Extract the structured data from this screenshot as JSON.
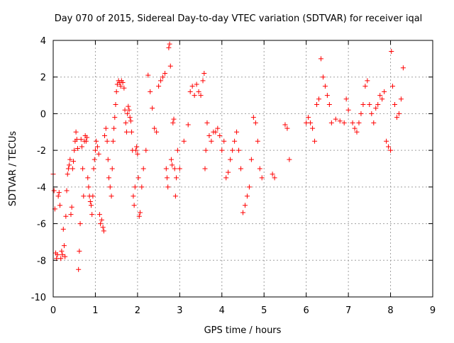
{
  "chart_data": {
    "type": "scatter",
    "title": "Day 070 of 2015, Sidereal Day-to-day VTEC variation (SDTVAR) for receiver iqal",
    "xlabel": "GPS time / hours",
    "ylabel": "SDTVAR / TECUs",
    "xlim": [
      0,
      9
    ],
    "ylim": [
      -10,
      4
    ],
    "xticks": [
      "0",
      "1",
      "2",
      "3",
      "4",
      "5",
      "6",
      "7",
      "8",
      "9"
    ],
    "yticks": [
      "4",
      "2",
      "0",
      "-2",
      "-4",
      "-6",
      "-8",
      "-10"
    ],
    "grid": true,
    "marker": "+",
    "series_color": "#ff0000",
    "series": [
      {
        "name": "SDTVAR",
        "points": [
          [
            0.0,
            -3.3
          ],
          [
            0.02,
            -4.2
          ],
          [
            0.04,
            -5.2
          ],
          [
            0.06,
            -7.6
          ],
          [
            0.08,
            -7.9
          ],
          [
            0.1,
            -7.7
          ],
          [
            0.12,
            -4.5
          ],
          [
            0.14,
            -4.3
          ],
          [
            0.16,
            -5.0
          ],
          [
            0.18,
            -7.9
          ],
          [
            0.2,
            -7.5
          ],
          [
            0.22,
            -7.7
          ],
          [
            0.24,
            -6.3
          ],
          [
            0.26,
            -7.2
          ],
          [
            0.28,
            -7.8
          ],
          [
            0.3,
            -5.6
          ],
          [
            0.32,
            -4.2
          ],
          [
            0.34,
            -3.3
          ],
          [
            0.36,
            -3.0
          ],
          [
            0.38,
            -2.8
          ],
          [
            0.4,
            -2.5
          ],
          [
            0.42,
            -5.5
          ],
          [
            0.44,
            -5.1
          ],
          [
            0.46,
            -3.0
          ],
          [
            0.48,
            -2.6
          ],
          [
            0.5,
            -2.0
          ],
          [
            0.52,
            -1.5
          ],
          [
            0.54,
            -1.0
          ],
          [
            0.56,
            -1.4
          ],
          [
            0.58,
            -1.9
          ],
          [
            0.6,
            -8.5
          ],
          [
            0.62,
            -7.5
          ],
          [
            0.64,
            -6.0
          ],
          [
            0.66,
            -1.4
          ],
          [
            0.68,
            -1.8
          ],
          [
            0.7,
            -3.0
          ],
          [
            0.72,
            -4.5
          ],
          [
            0.74,
            -1.5
          ],
          [
            0.76,
            -1.2
          ],
          [
            0.78,
            -1.5
          ],
          [
            0.8,
            -1.3
          ],
          [
            0.82,
            -3.5
          ],
          [
            0.84,
            -4.0
          ],
          [
            0.86,
            -4.5
          ],
          [
            0.88,
            -4.8
          ],
          [
            0.9,
            -5.0
          ],
          [
            0.92,
            -5.5
          ],
          [
            0.94,
            -4.5
          ],
          [
            0.96,
            -3.0
          ],
          [
            0.98,
            -2.5
          ],
          [
            1.0,
            -2.0
          ],
          [
            1.02,
            -1.5
          ],
          [
            1.05,
            -1.8
          ],
          [
            1.08,
            -2.2
          ],
          [
            1.1,
            -5.5
          ],
          [
            1.12,
            -6.0
          ],
          [
            1.15,
            -5.8
          ],
          [
            1.18,
            -6.2
          ],
          [
            1.2,
            -6.4
          ],
          [
            1.22,
            -1.2
          ],
          [
            1.25,
            -0.8
          ],
          [
            1.28,
            -1.5
          ],
          [
            1.3,
            -2.5
          ],
          [
            1.32,
            -3.5
          ],
          [
            1.35,
            -4.0
          ],
          [
            1.38,
            -4.5
          ],
          [
            1.4,
            -3.0
          ],
          [
            1.42,
            -1.5
          ],
          [
            1.44,
            -0.8
          ],
          [
            1.46,
            -0.2
          ],
          [
            1.48,
            0.5
          ],
          [
            1.5,
            1.2
          ],
          [
            1.52,
            1.6
          ],
          [
            1.55,
            1.8
          ],
          [
            1.58,
            1.7
          ],
          [
            1.6,
            1.5
          ],
          [
            1.62,
            1.8
          ],
          [
            1.65,
            1.7
          ],
          [
            1.68,
            1.4
          ],
          [
            1.7,
            0.2
          ],
          [
            1.72,
            -0.5
          ],
          [
            1.74,
            -1.0
          ],
          [
            1.76,
            0.0
          ],
          [
            1.78,
            0.4
          ],
          [
            1.8,
            0.2
          ],
          [
            1.82,
            -0.2
          ],
          [
            1.84,
            -0.4
          ],
          [
            1.86,
            -1.0
          ],
          [
            1.88,
            -2.0
          ],
          [
            1.9,
            -4.5
          ],
          [
            1.92,
            -5.0
          ],
          [
            1.94,
            -4.0
          ],
          [
            1.96,
            -2.0
          ],
          [
            1.98,
            -1.8
          ],
          [
            2.0,
            -2.2
          ],
          [
            2.02,
            -3.5
          ],
          [
            2.04,
            -5.6
          ],
          [
            2.06,
            -5.4
          ],
          [
            2.1,
            -4.0
          ],
          [
            2.14,
            -3.0
          ],
          [
            2.2,
            -2.0
          ],
          [
            2.25,
            2.1
          ],
          [
            2.3,
            1.2
          ],
          [
            2.35,
            0.3
          ],
          [
            2.4,
            -0.8
          ],
          [
            2.45,
            -1.0
          ],
          [
            2.5,
            1.5
          ],
          [
            2.55,
            1.8
          ],
          [
            2.6,
            2.0
          ],
          [
            2.65,
            2.2
          ],
          [
            2.68,
            -3.0
          ],
          [
            2.7,
            -3.5
          ],
          [
            2.72,
            -4.0
          ],
          [
            2.74,
            3.6
          ],
          [
            2.76,
            3.8
          ],
          [
            2.78,
            2.6
          ],
          [
            2.8,
            -2.5
          ],
          [
            2.82,
            -2.8
          ],
          [
            2.84,
            -0.5
          ],
          [
            2.86,
            -0.3
          ],
          [
            2.88,
            -3.0
          ],
          [
            2.9,
            -4.5
          ],
          [
            2.92,
            -3.5
          ],
          [
            2.95,
            -2.0
          ],
          [
            3.0,
            -3.0
          ],
          [
            3.1,
            -1.5
          ],
          [
            3.2,
            -0.6
          ],
          [
            3.25,
            1.2
          ],
          [
            3.3,
            1.5
          ],
          [
            3.35,
            1.0
          ],
          [
            3.4,
            1.6
          ],
          [
            3.45,
            1.2
          ],
          [
            3.5,
            1.0
          ],
          [
            3.55,
            1.8
          ],
          [
            3.58,
            2.2
          ],
          [
            3.6,
            -3.0
          ],
          [
            3.62,
            -2.0
          ],
          [
            3.65,
            -0.5
          ],
          [
            3.7,
            -1.2
          ],
          [
            3.75,
            -1.5
          ],
          [
            3.8,
            -1.0
          ],
          [
            3.85,
            -1.0
          ],
          [
            3.9,
            -0.8
          ],
          [
            3.95,
            -1.2
          ],
          [
            4.0,
            -2.0
          ],
          [
            4.05,
            -1.5
          ],
          [
            4.1,
            -3.5
          ],
          [
            4.15,
            -3.2
          ],
          [
            4.2,
            -2.5
          ],
          [
            4.25,
            -2.0
          ],
          [
            4.3,
            -1.5
          ],
          [
            4.35,
            -1.0
          ],
          [
            4.4,
            -2.0
          ],
          [
            4.45,
            -3.0
          ],
          [
            4.5,
            -5.4
          ],
          [
            4.55,
            -5.0
          ],
          [
            4.6,
            -4.5
          ],
          [
            4.65,
            -4.0
          ],
          [
            4.7,
            -2.5
          ],
          [
            4.75,
            -0.2
          ],
          [
            4.8,
            -0.5
          ],
          [
            4.85,
            -1.5
          ],
          [
            4.9,
            -3.0
          ],
          [
            4.95,
            -3.5
          ],
          [
            5.2,
            -3.3
          ],
          [
            5.25,
            -3.5
          ],
          [
            5.5,
            -0.6
          ],
          [
            5.55,
            -0.8
          ],
          [
            5.6,
            -2.5
          ],
          [
            6.0,
            -0.5
          ],
          [
            6.05,
            -0.2
          ],
          [
            6.1,
            -0.5
          ],
          [
            6.15,
            -0.8
          ],
          [
            6.2,
            -1.5
          ],
          [
            6.25,
            0.5
          ],
          [
            6.3,
            0.8
          ],
          [
            6.35,
            3.0
          ],
          [
            6.4,
            2.0
          ],
          [
            6.45,
            1.5
          ],
          [
            6.5,
            1.0
          ],
          [
            6.55,
            0.5
          ],
          [
            6.6,
            -0.5
          ],
          [
            6.7,
            -0.3
          ],
          [
            6.8,
            -0.4
          ],
          [
            6.9,
            -0.5
          ],
          [
            6.95,
            0.8
          ],
          [
            7.0,
            0.2
          ],
          [
            7.1,
            -0.5
          ],
          [
            7.15,
            -0.8
          ],
          [
            7.2,
            -1.0
          ],
          [
            7.25,
            -0.5
          ],
          [
            7.3,
            0.0
          ],
          [
            7.35,
            0.5
          ],
          [
            7.4,
            1.5
          ],
          [
            7.45,
            1.8
          ],
          [
            7.5,
            0.5
          ],
          [
            7.55,
            0.0
          ],
          [
            7.6,
            -0.5
          ],
          [
            7.65,
            0.3
          ],
          [
            7.7,
            0.5
          ],
          [
            7.75,
            1.0
          ],
          [
            7.8,
            0.8
          ],
          [
            7.85,
            1.2
          ],
          [
            7.9,
            -1.5
          ],
          [
            7.95,
            -1.8
          ],
          [
            8.0,
            -2.0
          ],
          [
            8.02,
            3.4
          ],
          [
            8.05,
            1.5
          ],
          [
            8.1,
            0.5
          ],
          [
            8.15,
            -0.2
          ],
          [
            8.2,
            0.0
          ],
          [
            8.25,
            0.8
          ],
          [
            8.3,
            2.5
          ]
        ]
      }
    ]
  }
}
